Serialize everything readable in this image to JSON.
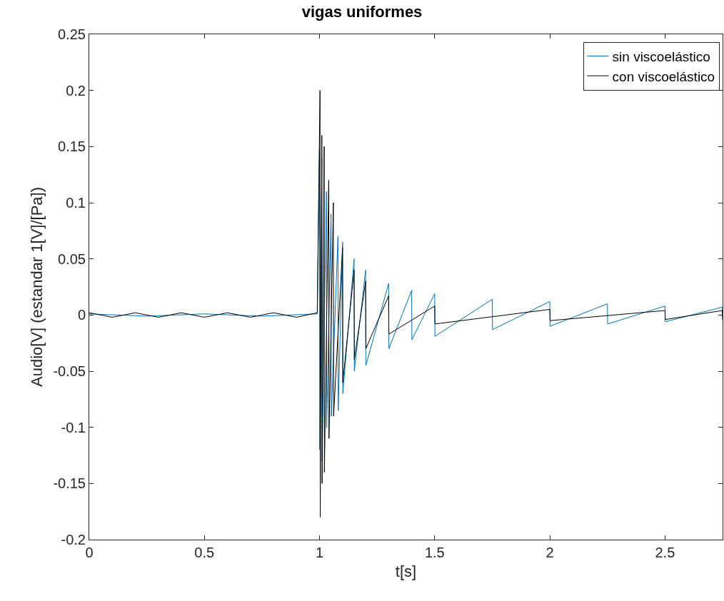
{
  "chart_data": {
    "type": "line",
    "title": "vigas uniformes",
    "xlabel": "t[s]",
    "ylabel": "Audio[V] (estandar 1[V]/[Pa])",
    "xlim": [
      0,
      2.75
    ],
    "xticks": [
      0,
      0.5,
      1,
      1.5,
      2,
      2.5
    ],
    "ylim": [
      -0.2,
      0.25
    ],
    "yticks": [
      -0.2,
      -0.15,
      -0.1,
      -0.05,
      0,
      0.05,
      0.1,
      0.15,
      0.2,
      0.25
    ],
    "legend": "top right",
    "marker": "none",
    "line_style": "solid",
    "series": [
      {
        "name": "sin viscoelástico",
        "color": "#0072bd",
        "x": [
          0,
          0.25,
          0.5,
          0.75,
          0.99,
          1.0,
          1.001,
          1.01,
          1.011,
          1.03,
          1.031,
          1.05,
          1.051,
          1.08,
          1.081,
          1.1,
          1.101,
          1.15,
          1.151,
          1.2,
          1.201,
          1.3,
          1.301,
          1.4,
          1.401,
          1.5,
          1.501,
          1.75,
          1.751,
          2.0,
          2.001,
          2.25,
          2.251,
          2.5,
          2.501,
          2.749,
          2.75
        ],
        "values": [
          0.001,
          -0.001,
          0.001,
          -0.001,
          0.001,
          0.148,
          -0.12,
          0.14,
          -0.13,
          0.11,
          -0.1,
          0.09,
          -0.09,
          0.07,
          -0.085,
          0.065,
          -0.07,
          0.05,
          -0.05,
          0.04,
          -0.045,
          0.028,
          -0.03,
          0.022,
          -0.022,
          0.019,
          -0.019,
          0.014,
          -0.013,
          0.012,
          -0.01,
          0.01,
          -0.008,
          0.008,
          -0.006,
          0.007,
          -0.005
        ]
      },
      {
        "name": "con viscoelástico",
        "color": "#000000",
        "x": [
          0,
          0.1,
          0.2,
          0.3,
          0.4,
          0.5,
          0.6,
          0.7,
          0.8,
          0.9,
          0.99,
          1.002,
          1.003,
          1.01,
          1.011,
          1.02,
          1.021,
          1.04,
          1.041,
          1.06,
          1.061,
          1.1,
          1.101,
          1.15,
          1.151,
          1.2,
          1.201,
          1.3,
          1.301,
          1.5,
          1.501,
          2.0,
          2.001,
          2.5,
          2.501,
          2.749,
          2.75
        ],
        "values": [
          0.002,
          -0.002,
          0.002,
          -0.002,
          0.002,
          -0.002,
          0.002,
          -0.002,
          0.002,
          -0.002,
          0.002,
          0.2,
          -0.18,
          0.16,
          -0.15,
          0.15,
          -0.14,
          0.12,
          -0.11,
          0.1,
          -0.09,
          0.06,
          -0.06,
          0.04,
          -0.04,
          0.03,
          -0.03,
          0.017,
          -0.017,
          0.008,
          -0.008,
          0.005,
          -0.005,
          0.004,
          -0.004,
          0.004,
          -0.003
        ]
      }
    ]
  }
}
